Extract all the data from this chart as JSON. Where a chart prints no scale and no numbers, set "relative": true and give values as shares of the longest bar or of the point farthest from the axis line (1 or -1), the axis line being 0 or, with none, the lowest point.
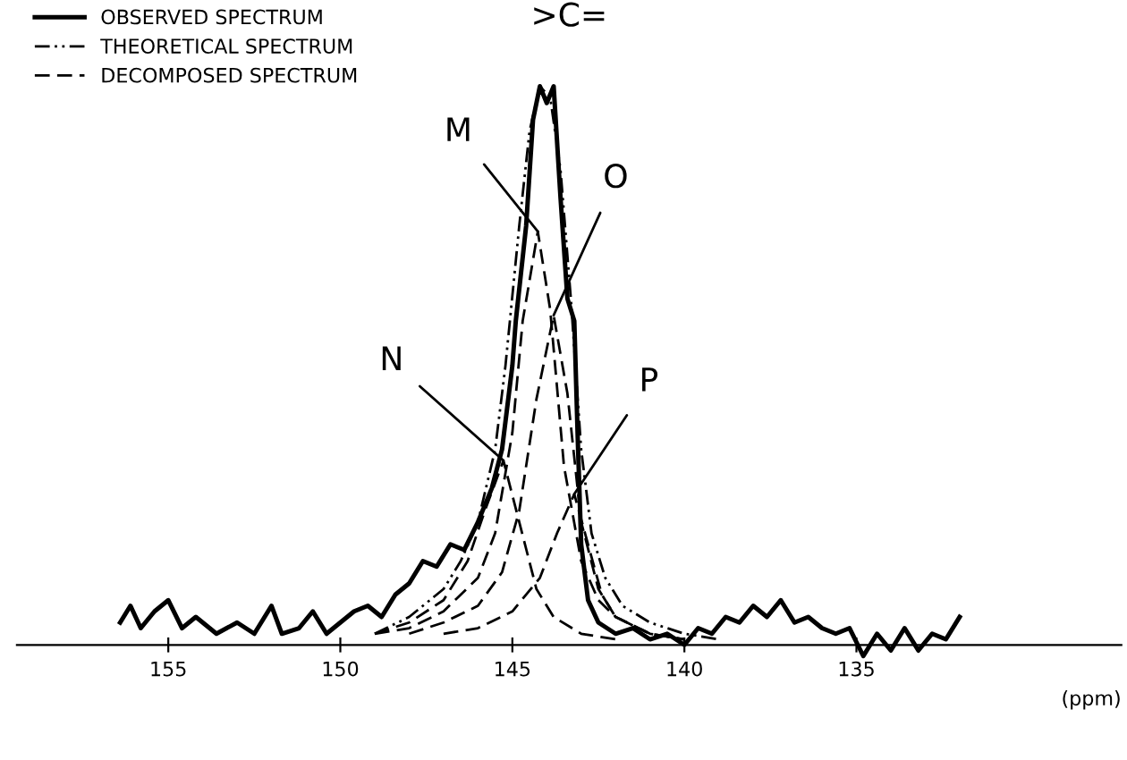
{
  "chart_data": {
    "type": "line",
    "relative": true,
    "xlabel": "(ppm)",
    "xlim": [
      159.4,
      127.3
    ],
    "xticks": [
      155,
      150,
      145,
      140,
      135
    ],
    "legend": "top left",
    "grid": false,
    "marker": "none",
    "series": [
      {
        "name": "OBSERVED SPECTRUM",
        "color": "#000000",
        "line_style": "solid",
        "x": [
          156.4,
          156.1,
          155.8,
          155.4,
          155.0,
          154.6,
          154.2,
          153.6,
          153.0,
          152.5,
          152.0,
          151.7,
          151.2,
          150.8,
          150.4,
          150.0,
          149.6,
          149.2,
          148.8,
          148.4,
          148.0,
          147.6,
          147.2,
          146.8,
          146.4,
          146.0,
          145.6,
          145.3,
          145.0,
          144.9,
          144.6,
          144.4,
          144.2,
          144.0,
          143.8,
          143.6,
          143.4,
          143.2,
          143.1,
          143.0,
          142.8,
          142.5,
          142.0,
          141.5,
          141.0,
          140.5,
          140.0,
          139.6,
          139.2,
          138.8,
          138.4,
          138.0,
          137.6,
          137.2,
          136.8,
          136.4,
          136.0,
          135.6,
          135.2,
          134.8,
          134.4,
          134.0,
          133.6,
          133.2,
          132.8,
          132.4,
          132.0
        ],
        "values": [
          0.04,
          0.07,
          0.03,
          0.06,
          0.08,
          0.03,
          0.05,
          0.02,
          0.04,
          0.02,
          0.07,
          0.02,
          0.03,
          0.06,
          0.02,
          0.04,
          0.06,
          0.07,
          0.05,
          0.09,
          0.11,
          0.15,
          0.14,
          0.18,
          0.17,
          0.22,
          0.28,
          0.35,
          0.5,
          0.58,
          0.75,
          0.94,
          1.0,
          0.97,
          1.0,
          0.8,
          0.62,
          0.58,
          0.37,
          0.18,
          0.08,
          0.04,
          0.02,
          0.03,
          0.01,
          0.02,
          0.0,
          0.03,
          0.02,
          0.05,
          0.04,
          0.07,
          0.05,
          0.08,
          0.04,
          0.05,
          0.03,
          0.02,
          0.03,
          -0.02,
          0.02,
          -0.01,
          0.03,
          -0.01,
          0.02,
          0.01,
          0.05
        ]
      },
      {
        "name": "THEORETICAL SPECTRUM",
        "color": "#000000",
        "line_style": "dashdot",
        "x": [
          149,
          148,
          147,
          146.5,
          146,
          145.5,
          145.2,
          144.8,
          144.5,
          144.2,
          143.9,
          143.6,
          143.3,
          143.0,
          142.7,
          142.3,
          141.8,
          141,
          140,
          139
        ],
        "values": [
          0.02,
          0.05,
          0.1,
          0.15,
          0.22,
          0.35,
          0.5,
          0.75,
          0.92,
          1.0,
          0.98,
          0.85,
          0.62,
          0.35,
          0.2,
          0.12,
          0.07,
          0.04,
          0.02,
          0.01
        ]
      },
      {
        "name": "DECOMPOSED SPECTRUM",
        "color": "#000000",
        "line_style": "dashed",
        "x": [
          149,
          148,
          147,
          146,
          145.5,
          145,
          144.7,
          144.26,
          143.9,
          143.5,
          143,
          142.5,
          142,
          141,
          140
        ],
        "values": [
          0.02,
          0.03,
          0.06,
          0.12,
          0.2,
          0.38,
          0.58,
          0.74,
          0.6,
          0.32,
          0.15,
          0.08,
          0.05,
          0.02,
          0.01
        ]
      },
      {
        "color": "#000000",
        "line_style": "dashed",
        "x": [
          149,
          148,
          147,
          146.3,
          145.8,
          145.26,
          144.8,
          144.3,
          143.8,
          143,
          142
        ],
        "values": [
          0.02,
          0.04,
          0.08,
          0.15,
          0.24,
          0.33,
          0.22,
          0.1,
          0.05,
          0.02,
          0.01
        ]
      },
      {
        "color": "#000000",
        "line_style": "dashed",
        "x": [
          148,
          147,
          146,
          145.3,
          144.8,
          144.3,
          143.8,
          143.4,
          143.0,
          142.5,
          142,
          141,
          140
        ],
        "values": [
          0.02,
          0.04,
          0.07,
          0.13,
          0.24,
          0.44,
          0.59,
          0.45,
          0.22,
          0.1,
          0.05,
          0.02,
          0.01
        ]
      },
      {
        "color": "#000000",
        "line_style": "dashed",
        "x": [
          147,
          146,
          145,
          144.2,
          143.7,
          143.2,
          142.8,
          142.4,
          142,
          141,
          140
        ],
        "values": [
          0.02,
          0.03,
          0.06,
          0.12,
          0.2,
          0.27,
          0.18,
          0.09,
          0.05,
          0.02,
          0.01
        ]
      }
    ],
    "annotations": [
      ">C=",
      {
        "text": "M",
        "x": 144.26,
        "y": 0.74
      },
      {
        "text": "N",
        "x": 145.26,
        "y": 0.33
      },
      {
        "text": "O",
        "x": 143.8,
        "y": 0.59
      },
      {
        "text": "P",
        "x": 143.2,
        "y": 0.27
      }
    ]
  }
}
